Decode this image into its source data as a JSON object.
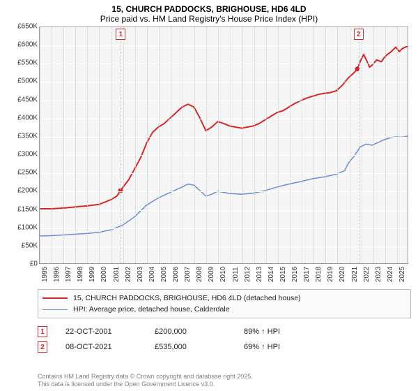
{
  "title_line1": "15, CHURCH PADDOCKS, BRIGHOUSE, HD6 4LD",
  "title_line2": "Price paid vs. HM Land Registry's House Price Index (HPI)",
  "chart": {
    "type": "line",
    "background_color": "#f5f5f5",
    "grid_color": "#ffffff",
    "x_grid_color": "#cccccc",
    "border_color": "#999999",
    "ylim": [
      0,
      650000
    ],
    "ytick_step": 50000,
    "yticks": [
      "£0",
      "£50K",
      "£100K",
      "£150K",
      "£200K",
      "£250K",
      "£300K",
      "£350K",
      "£400K",
      "£450K",
      "£500K",
      "£550K",
      "£600K",
      "£650K"
    ],
    "xlim": [
      1995,
      2026
    ],
    "xticks": [
      "1995",
      "1996",
      "1997",
      "1998",
      "1999",
      "2000",
      "2001",
      "2002",
      "2003",
      "2004",
      "2005",
      "2006",
      "2007",
      "2008",
      "2009",
      "2010",
      "2011",
      "2012",
      "2013",
      "2014",
      "2015",
      "2016",
      "2017",
      "2018",
      "2019",
      "2020",
      "2021",
      "2022",
      "2023",
      "2024",
      "2025"
    ],
    "label_fontsize": 10,
    "series": [
      {
        "name": "15, CHURCH PADDOCKS, BRIGHOUSE, HD6 4LD (detached house)",
        "color": "#d62728",
        "line_width": 2,
        "data": [
          [
            1995,
            150000
          ],
          [
            1996,
            150000
          ],
          [
            1997,
            152000
          ],
          [
            1998,
            155000
          ],
          [
            1999,
            158000
          ],
          [
            2000,
            162000
          ],
          [
            2001,
            175000
          ],
          [
            2001.5,
            185000
          ],
          [
            2001.81,
            200000
          ],
          [
            2002.5,
            230000
          ],
          [
            2003,
            260000
          ],
          [
            2003.5,
            290000
          ],
          [
            2004,
            330000
          ],
          [
            2004.5,
            360000
          ],
          [
            2005,
            375000
          ],
          [
            2005.5,
            385000
          ],
          [
            2006,
            400000
          ],
          [
            2006.5,
            415000
          ],
          [
            2007,
            430000
          ],
          [
            2007.5,
            438000
          ],
          [
            2008,
            430000
          ],
          [
            2008.5,
            400000
          ],
          [
            2009,
            365000
          ],
          [
            2009.5,
            375000
          ],
          [
            2010,
            390000
          ],
          [
            2010.5,
            385000
          ],
          [
            2011,
            378000
          ],
          [
            2011.5,
            375000
          ],
          [
            2012,
            372000
          ],
          [
            2012.5,
            375000
          ],
          [
            2013,
            378000
          ],
          [
            2013.5,
            385000
          ],
          [
            2014,
            395000
          ],
          [
            2014.5,
            405000
          ],
          [
            2015,
            415000
          ],
          [
            2015.5,
            420000
          ],
          [
            2016,
            430000
          ],
          [
            2016.5,
            440000
          ],
          [
            2017,
            448000
          ],
          [
            2017.5,
            455000
          ],
          [
            2018,
            460000
          ],
          [
            2018.5,
            465000
          ],
          [
            2019,
            468000
          ],
          [
            2019.5,
            470000
          ],
          [
            2020,
            475000
          ],
          [
            2020.5,
            490000
          ],
          [
            2021,
            510000
          ],
          [
            2021.5,
            525000
          ],
          [
            2021.77,
            535000
          ],
          [
            2022,
            555000
          ],
          [
            2022.3,
            575000
          ],
          [
            2022.6,
            555000
          ],
          [
            2022.8,
            540000
          ],
          [
            2023,
            545000
          ],
          [
            2023.4,
            560000
          ],
          [
            2023.8,
            555000
          ],
          [
            2024,
            565000
          ],
          [
            2024.3,
            575000
          ],
          [
            2024.6,
            582000
          ],
          [
            2025,
            595000
          ],
          [
            2025.3,
            583000
          ],
          [
            2025.6,
            592000
          ],
          [
            2026,
            598000
          ]
        ]
      },
      {
        "name": "HPI: Average price, detached house, Calderdale",
        "color": "#6a8fd4",
        "line_width": 1.5,
        "data": [
          [
            1995,
            75000
          ],
          [
            1996,
            76000
          ],
          [
            1997,
            78000
          ],
          [
            1998,
            80000
          ],
          [
            1999,
            82000
          ],
          [
            2000,
            85000
          ],
          [
            2001,
            92000
          ],
          [
            2002,
            105000
          ],
          [
            2003,
            128000
          ],
          [
            2004,
            160000
          ],
          [
            2005,
            180000
          ],
          [
            2006,
            195000
          ],
          [
            2007,
            210000
          ],
          [
            2007.5,
            218000
          ],
          [
            2008,
            215000
          ],
          [
            2008.5,
            200000
          ],
          [
            2009,
            185000
          ],
          [
            2009.5,
            190000
          ],
          [
            2010,
            198000
          ],
          [
            2011,
            192000
          ],
          [
            2012,
            190000
          ],
          [
            2013,
            193000
          ],
          [
            2014,
            200000
          ],
          [
            2015,
            210000
          ],
          [
            2016,
            218000
          ],
          [
            2017,
            225000
          ],
          [
            2018,
            233000
          ],
          [
            2019,
            238000
          ],
          [
            2020,
            245000
          ],
          [
            2020.7,
            255000
          ],
          [
            2021,
            275000
          ],
          [
            2021.5,
            295000
          ],
          [
            2022,
            320000
          ],
          [
            2022.5,
            328000
          ],
          [
            2023,
            325000
          ],
          [
            2023.5,
            332000
          ],
          [
            2024,
            340000
          ],
          [
            2024.5,
            345000
          ],
          [
            2025,
            348000
          ],
          [
            2025.5,
            347000
          ],
          [
            2026,
            350000
          ]
        ]
      }
    ],
    "markers": [
      {
        "label": "1",
        "x": 2001.81,
        "y": 200000,
        "color": "#d62728",
        "guide": true
      },
      {
        "label": "2",
        "x": 2021.77,
        "y": 535000,
        "color": "#d62728",
        "guide": true
      }
    ]
  },
  "legend": {
    "items": [
      {
        "color": "#d62728",
        "width": 2,
        "label": "15, CHURCH PADDOCKS, BRIGHOUSE, HD6 4LD (detached house)"
      },
      {
        "color": "#6a8fd4",
        "width": 1.5,
        "label": "HPI: Average price, detached house, Calderdale"
      }
    ]
  },
  "transactions": [
    {
      "marker": "1",
      "color": "#d62728",
      "date": "22-OCT-2001",
      "price": "£200,000",
      "hpi": "89% ↑ HPI"
    },
    {
      "marker": "2",
      "color": "#d62728",
      "date": "08-OCT-2021",
      "price": "£535,000",
      "hpi": "69% ↑ HPI"
    }
  ],
  "footer_line1": "Contains HM Land Registry data © Crown copyright and database right 2025.",
  "footer_line2": "This data is licensed under the Open Government Licence v3.0."
}
